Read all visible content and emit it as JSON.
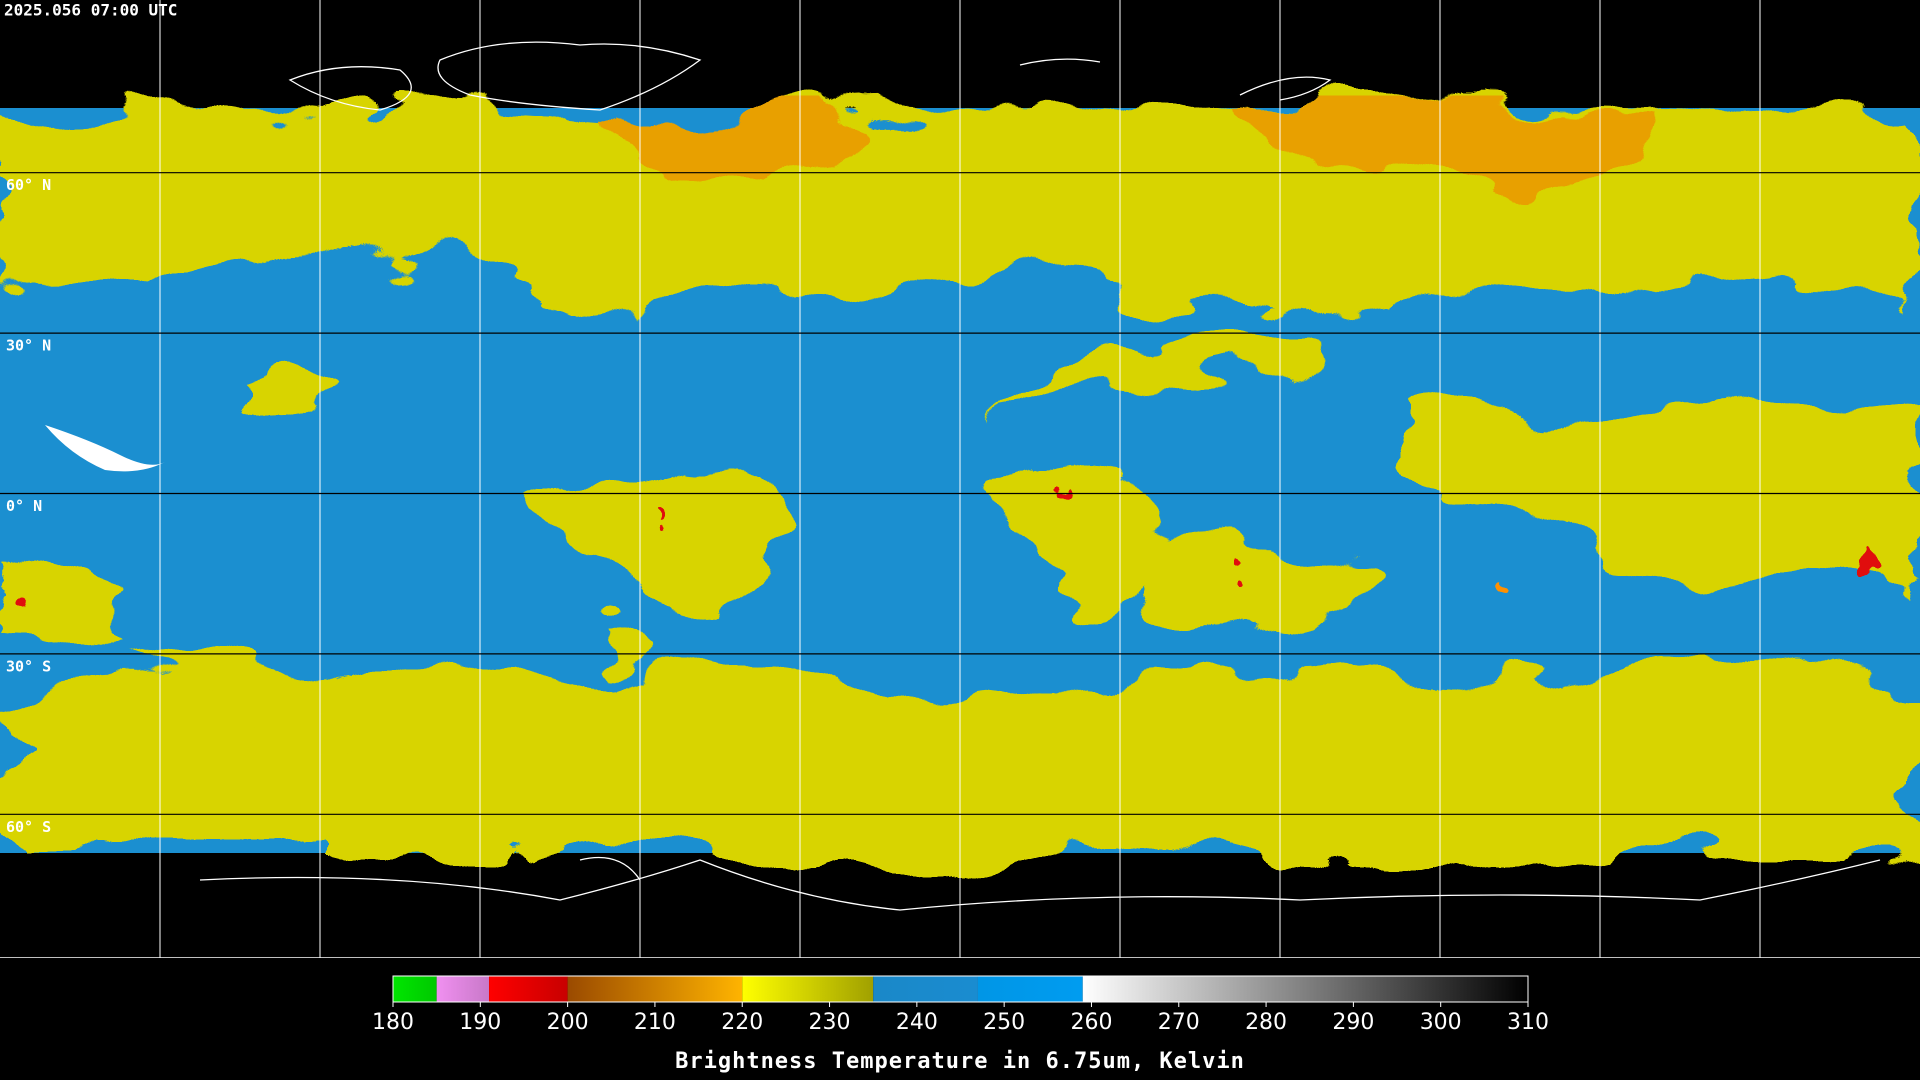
{
  "timestamp": "2025.056 07:00 UTC",
  "latitude_lines": [
    {
      "value": 60,
      "label": "60° N"
    },
    {
      "value": 30,
      "label": "30° N"
    },
    {
      "value": 0,
      "label": "0° N"
    },
    {
      "value": -30,
      "label": "30° S"
    },
    {
      "value": -60,
      "label": "60° S"
    }
  ],
  "colorbar": {
    "title": "Brightness Temperature in 6.75um, Kelvin",
    "range": [
      180,
      310
    ],
    "ticks": [
      180,
      190,
      200,
      210,
      220,
      230,
      240,
      250,
      260,
      270,
      280,
      290,
      300,
      310
    ],
    "segments": [
      {
        "from": 180,
        "to": 185,
        "colors": [
          "#00e600",
          "#00c800"
        ]
      },
      {
        "from": 185,
        "to": 191,
        "colors": [
          "#f090f0",
          "#c878c8"
        ]
      },
      {
        "from": 191,
        "to": 200,
        "colors": [
          "#ff0000",
          "#c80000"
        ]
      },
      {
        "from": 200,
        "to": 220,
        "colors": [
          "#9a4a00",
          "#ffb400"
        ]
      },
      {
        "from": 220,
        "to": 235,
        "colors": [
          "#ffff00",
          "#a0a000"
        ]
      },
      {
        "from": 235,
        "to": 247,
        "colors": [
          "#1a88c8",
          "#1a8cd0"
        ]
      },
      {
        "from": 247,
        "to": 259,
        "colors": [
          "#0096e6",
          "#009cf0"
        ]
      },
      {
        "from": 259,
        "to": 310,
        "colors": [
          "#ffffff",
          "#000000"
        ]
      }
    ]
  }
}
